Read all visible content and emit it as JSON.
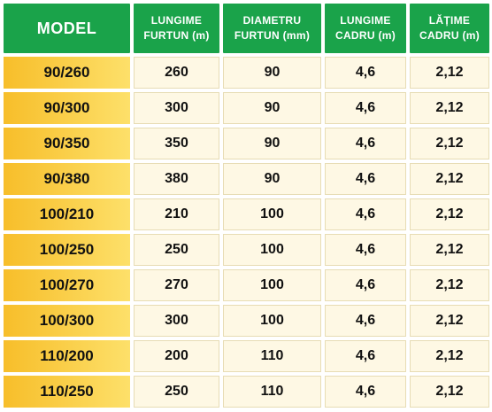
{
  "colors": {
    "header_bg": "#1aa34a",
    "header_text": "#ffffff",
    "model_bg": "#f9c933",
    "cell_bg": "#fef8e4"
  },
  "headers": [
    "MODEL",
    "LUNGIME FURTUN (m)",
    "DIAMETRU FURTUN (mm)",
    "LUNGIME CADRU (m)",
    "LĂȚIME CADRU (m)"
  ],
  "rows": [
    [
      "90/260",
      "260",
      "90",
      "4,6",
      "2,12"
    ],
    [
      "90/300",
      "300",
      "90",
      "4,6",
      "2,12"
    ],
    [
      "90/350",
      "350",
      "90",
      "4,6",
      "2,12"
    ],
    [
      "90/380",
      "380",
      "90",
      "4,6",
      "2,12"
    ],
    [
      "100/210",
      "210",
      "100",
      "4,6",
      "2,12"
    ],
    [
      "100/250",
      "250",
      "100",
      "4,6",
      "2,12"
    ],
    [
      "100/270",
      "270",
      "100",
      "4,6",
      "2,12"
    ],
    [
      "100/300",
      "300",
      "100",
      "4,6",
      "2,12"
    ],
    [
      "110/200",
      "200",
      "110",
      "4,6",
      "2,12"
    ],
    [
      "110/250",
      "250",
      "110",
      "4,6",
      "2,12"
    ]
  ]
}
